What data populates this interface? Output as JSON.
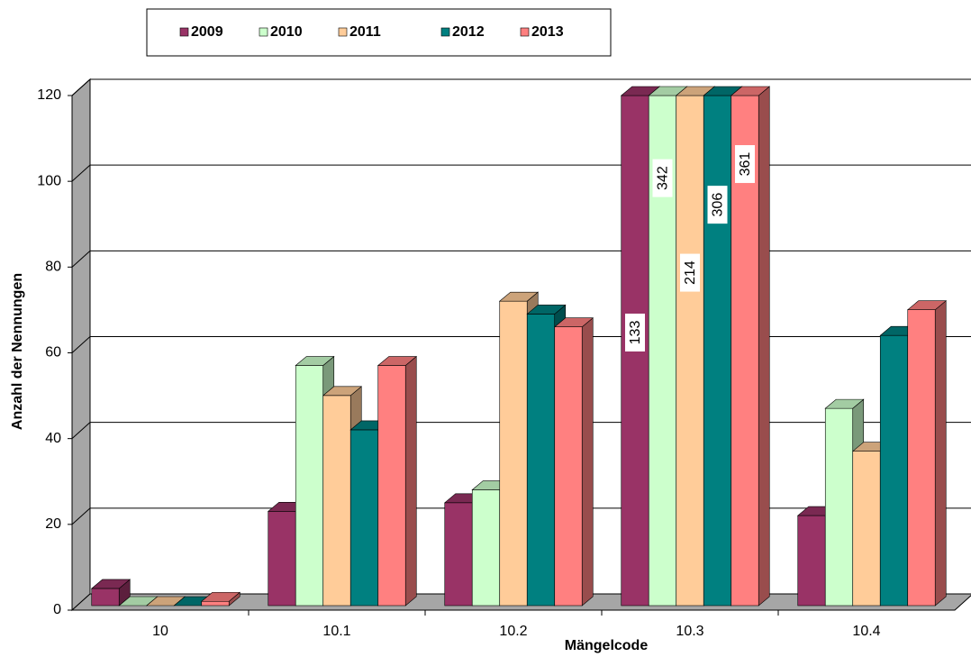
{
  "chart_data": {
    "type": "bar3d",
    "categories": [
      "10",
      "10.1",
      "10.2",
      "10.3",
      "10.4"
    ],
    "series": [
      {
        "name": "2009",
        "color": "#993366",
        "values": [
          4,
          22,
          24,
          133,
          21
        ]
      },
      {
        "name": "2010",
        "color": "#ccffcc",
        "values": [
          0,
          56,
          27,
          342,
          46
        ]
      },
      {
        "name": "2011",
        "color": "#ffcc99",
        "values": [
          0,
          49,
          71,
          214,
          36
        ]
      },
      {
        "name": "2012",
        "color": "#008080",
        "values": [
          0,
          41,
          68,
          306,
          63
        ]
      },
      {
        "name": "2013",
        "color": "#ff8080",
        "values": [
          1,
          56,
          65,
          361,
          69
        ]
      }
    ],
    "x_label": "Mängelcode",
    "y_label": "Anzahl der Nennungen",
    "ylim": [
      0,
      120
    ],
    "yticks": [
      0,
      20,
      40,
      60,
      80,
      100,
      120
    ],
    "grid": true,
    "legend": "top"
  }
}
